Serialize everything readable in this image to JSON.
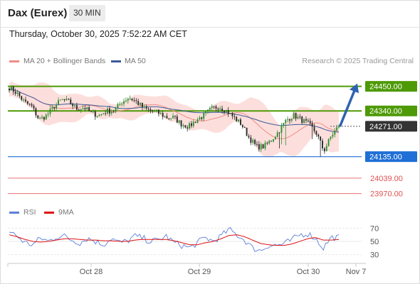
{
  "header": {
    "title": "Dax (Eurex)",
    "timeframe": "30 MIN",
    "datetime": "Thursday, October 30, 2025 7:52:22 AM CET",
    "credit": "Research © 2025 Trading Central"
  },
  "legend": {
    "ma20": {
      "label": "MA 20 + Bollinger Bands",
      "color": "#f08c84"
    },
    "ma50": {
      "label": "MA 50",
      "color": "#3c5a9a"
    }
  },
  "rsi_legend": {
    "rsi": {
      "label": "RSI",
      "color": "#5b7fd9"
    },
    "ma9": {
      "label": "9MA",
      "color": "#e01010"
    }
  },
  "chart_data": [
    {
      "type": "candlestick",
      "title": "",
      "x_ticks": [
        "Oct 28",
        "Oct 29",
        "Oct 30",
        "Nov 7"
      ],
      "ylim": [
        23940,
        24525
      ],
      "levels": [
        {
          "value": 24450,
          "label": "24450.00",
          "kind": "resistance",
          "color": "#4e9a06"
        },
        {
          "value": 24340,
          "label": "24340.00",
          "kind": "resistance",
          "color": "#4e9a06"
        },
        {
          "value": 24271,
          "label": "24271.00",
          "kind": "last-price",
          "color": "#333333"
        },
        {
          "value": 24135,
          "label": "24135.00",
          "kind": "pivot",
          "color": "#1f6fd6"
        },
        {
          "value": 24039,
          "label": "24039.00",
          "kind": "support",
          "color": "#e05050"
        },
        {
          "value": 23970,
          "label": "23970.00",
          "kind": "support",
          "color": "#e05050"
        }
      ],
      "anchors": [
        24445,
        24420,
        24380,
        24360,
        24300,
        24320,
        24360,
        24390,
        24380,
        24350,
        24355,
        24330,
        24320,
        24340,
        24340,
        24380,
        24400,
        24380,
        24350,
        24340,
        24330,
        24310,
        24310,
        24280,
        24270,
        24300,
        24320,
        24350,
        24360,
        24340,
        24310,
        24280,
        24220,
        24180,
        24180,
        24210,
        24250,
        24300,
        24320,
        24300,
        24280,
        24240,
        24160,
        24230,
        24271
      ],
      "candle_count": 162,
      "forecast_arrow": {
        "from": 24271,
        "to": 24450
      }
    },
    {
      "type": "line",
      "title": "",
      "ylim": [
        20,
        80
      ],
      "y_ticks": [
        70,
        50,
        30
      ],
      "series": [
        {
          "name": "RSI",
          "anchors": [
            65,
            58,
            48,
            45,
            55,
            50,
            57,
            58,
            52,
            48,
            55,
            50,
            45,
            55,
            48,
            50,
            58,
            55,
            50,
            52,
            58,
            48,
            44,
            40,
            48,
            56,
            50,
            58,
            68,
            60,
            52,
            40,
            36,
            44,
            44,
            46,
            52,
            60,
            62,
            55,
            40,
            56,
            56
          ]
        },
        {
          "name": "9MA",
          "anchors": [
            60,
            57,
            53,
            50,
            49,
            50,
            52,
            54,
            54,
            53,
            52,
            52,
            51,
            51,
            50,
            50,
            52,
            53,
            53,
            53,
            53,
            51,
            48,
            45,
            45,
            48,
            50,
            54,
            59,
            60,
            57,
            52,
            47,
            45,
            44,
            44,
            46,
            50,
            54,
            56,
            52,
            52,
            53
          ]
        }
      ]
    }
  ]
}
